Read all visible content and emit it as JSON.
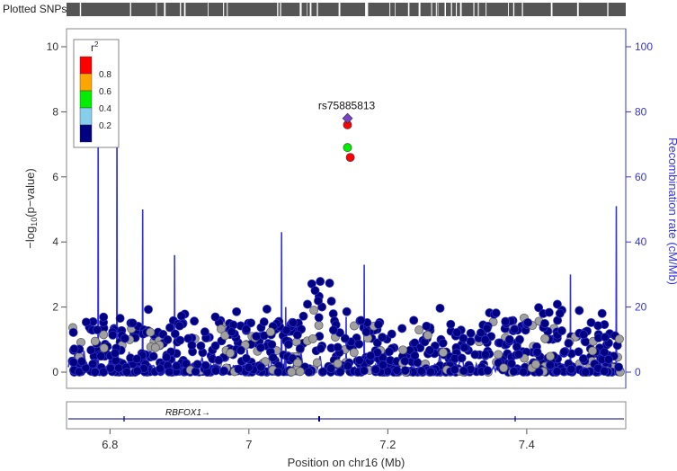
{
  "track": {
    "label": "Plotted SNPs"
  },
  "chart_data": {
    "type": "scatter",
    "xlabel": "Position on chr16 (Mb)",
    "ylabel_left": "-log10(p-value)",
    "ylabel_right": "Recombination rate (cM/Mb)",
    "xlim": [
      6.74,
      7.54
    ],
    "ylim_left": [
      0,
      10
    ],
    "ylim_right": [
      0,
      100
    ],
    "x_ticks": [
      "6.8",
      "7",
      "7.2",
      "7.4"
    ],
    "x_tick_values": [
      6.8,
      7.0,
      7.2,
      7.4
    ],
    "y_ticks_left": [
      "0",
      "2",
      "4",
      "6",
      "8",
      "10"
    ],
    "y_ticks_right": [
      "0",
      "20",
      "40",
      "60",
      "80",
      "100"
    ],
    "legend": {
      "title": "r2",
      "placement": "top-left",
      "items": [
        {
          "label": "0.8",
          "color": "#ff0000"
        },
        {
          "label": "0.6",
          "color": "#ffa500"
        },
        {
          "label": "0.4",
          "color": "#00ee00"
        },
        {
          "label": "0.2",
          "color": "#87ceeb"
        },
        {
          "label": "",
          "color": "#000080"
        }
      ]
    },
    "lead_snp": {
      "name": "rs75885813",
      "x": 7.142,
      "y": 7.8,
      "color": "#7b3fc4"
    },
    "highlighted_points": [
      {
        "x": 7.142,
        "y": 7.6,
        "color": "#ff0000"
      },
      {
        "x": 7.142,
        "y": 6.9,
        "color": "#00ee00"
      },
      {
        "x": 7.146,
        "y": 6.6,
        "color": "#ff0000"
      }
    ],
    "recombination_peaks": [
      {
        "x": 6.783,
        "rate": 80
      },
      {
        "x": 6.81,
        "rate": 80
      },
      {
        "x": 6.847,
        "rate": 50
      },
      {
        "x": 6.893,
        "rate": 36
      },
      {
        "x": 7.047,
        "rate": 43
      },
      {
        "x": 7.053,
        "rate": 20
      },
      {
        "x": 7.14,
        "rate": 17
      },
      {
        "x": 7.166,
        "rate": 33
      },
      {
        "x": 7.463,
        "rate": 30
      },
      {
        "x": 7.529,
        "rate": 51
      }
    ],
    "gene": {
      "name": "RBFOX1",
      "arrow": "→"
    },
    "colors": {
      "recombination": "#3333dd",
      "snp_default": "#000080",
      "snp_missing": "#a0a0a0"
    }
  }
}
